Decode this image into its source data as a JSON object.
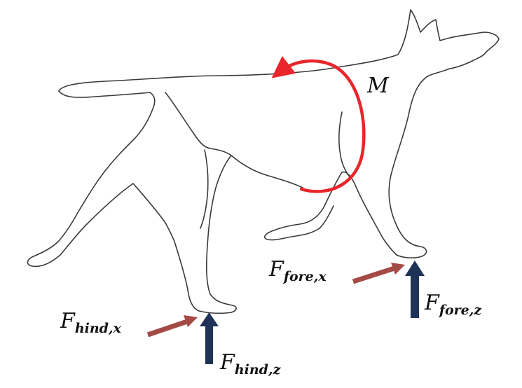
{
  "labels": {
    "moment": "M",
    "hind_x": {
      "main": "F",
      "sub": "hind,x"
    },
    "hind_z": {
      "main": "F",
      "sub": "hind,z"
    },
    "fore_x": {
      "main": "F",
      "sub": "fore,x"
    },
    "fore_z": {
      "main": "F",
      "sub": "fore,z"
    }
  },
  "colors": {
    "moment_arrow": "#e8262b",
    "horizontal_force": "#a44a45",
    "vertical_force": "#1f3357",
    "outline": "#3a3a3a"
  }
}
